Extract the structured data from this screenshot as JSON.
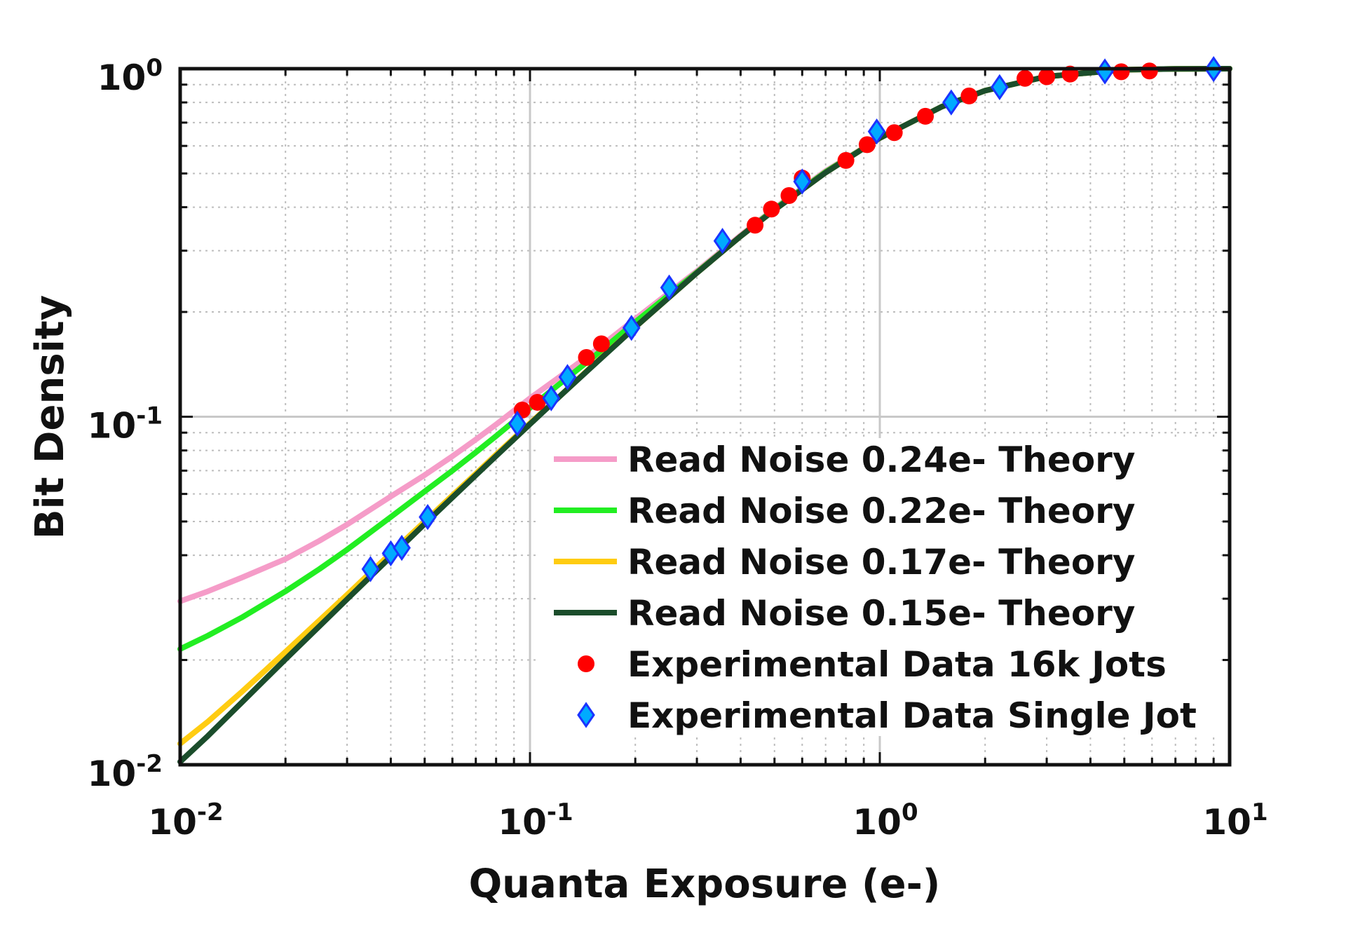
{
  "chart_data": {
    "type": "line",
    "xscale": "log",
    "yscale": "log",
    "xlim": [
      0.01,
      10
    ],
    "ylim": [
      0.01,
      1
    ],
    "xlabel": "Quanta Exposure (e-)",
    "ylabel": "Bit Density",
    "grid": true,
    "legend": "lower-right",
    "x_ticks": [
      {
        "base": "10",
        "exp": "-2",
        "value": 0.01
      },
      {
        "base": "10",
        "exp": "-1",
        "value": 0.1
      },
      {
        "base": "10",
        "exp": "0",
        "value": 1
      },
      {
        "base": "10",
        "exp": "1",
        "value": 10
      }
    ],
    "y_ticks": [
      {
        "base": "10",
        "exp": "-2",
        "value": 0.01
      },
      {
        "base": "10",
        "exp": "-1",
        "value": 0.1
      },
      {
        "base": "10",
        "exp": "0",
        "value": 1
      }
    ],
    "series": [
      {
        "name": "Read Noise 0.24e- Theory",
        "kind": "line",
        "color": "#f59cc8",
        "x": [
          0.01,
          0.012,
          0.015,
          0.02,
          0.025,
          0.03,
          0.04,
          0.05,
          0.06,
          0.07,
          0.08,
          0.1,
          0.12,
          0.15,
          0.2,
          0.3,
          0.4,
          0.5,
          0.7,
          1,
          1.5,
          2,
          3,
          5,
          7,
          10
        ],
        "y": [
          0.0295,
          0.0315,
          0.0345,
          0.039,
          0.044,
          0.049,
          0.059,
          0.068,
          0.077,
          0.086,
          0.095,
          0.113,
          0.129,
          0.152,
          0.191,
          0.262,
          0.332,
          0.397,
          0.508,
          0.632,
          0.777,
          0.865,
          0.95,
          0.993,
          0.999,
          1.0
        ]
      },
      {
        "name": "Read Noise 0.22e- Theory",
        "kind": "line",
        "color": "#22ee22",
        "x": [
          0.01,
          0.012,
          0.015,
          0.02,
          0.025,
          0.03,
          0.04,
          0.05,
          0.06,
          0.07,
          0.08,
          0.1,
          0.12,
          0.15,
          0.2,
          0.3,
          0.4,
          0.5,
          0.7,
          1,
          1.5,
          2,
          3,
          5,
          7,
          10
        ],
        "y": [
          0.0215,
          0.0235,
          0.0265,
          0.0315,
          0.0365,
          0.0415,
          0.0515,
          0.061,
          0.07,
          0.079,
          0.088,
          0.106,
          0.123,
          0.147,
          0.187,
          0.26,
          0.33,
          0.395,
          0.505,
          0.632,
          0.777,
          0.865,
          0.95,
          0.993,
          0.999,
          1.0
        ]
      },
      {
        "name": "Read Noise 0.17e- Theory",
        "kind": "line",
        "color": "#ffcc11",
        "x": [
          0.01,
          0.012,
          0.015,
          0.02,
          0.025,
          0.03,
          0.04,
          0.05,
          0.06,
          0.07,
          0.08,
          0.1,
          0.12,
          0.15,
          0.2,
          0.3,
          0.4,
          0.5,
          0.7,
          1,
          1.5,
          2,
          3,
          5,
          7,
          10
        ],
        "y": [
          0.0115,
          0.0133,
          0.0162,
          0.0211,
          0.026,
          0.0308,
          0.0405,
          0.05,
          0.0594,
          0.0686,
          0.0778,
          0.0958,
          0.113,
          0.1395,
          0.181,
          0.259,
          0.33,
          0.393,
          0.503,
          0.632,
          0.777,
          0.865,
          0.95,
          0.993,
          0.999,
          1.0
        ]
      },
      {
        "name": "Read Noise 0.15e- Theory",
        "kind": "line",
        "color": "#1b4d2b",
        "x": [
          0.01,
          0.012,
          0.015,
          0.02,
          0.025,
          0.03,
          0.04,
          0.05,
          0.06,
          0.07,
          0.08,
          0.1,
          0.12,
          0.15,
          0.2,
          0.3,
          0.4,
          0.5,
          0.7,
          1,
          1.5,
          2,
          3,
          5,
          7,
          10
        ],
        "y": [
          0.0102,
          0.0121,
          0.0151,
          0.0201,
          0.025,
          0.0299,
          0.0396,
          0.0492,
          0.0586,
          0.0679,
          0.0771,
          0.0952,
          0.113,
          0.139,
          0.181,
          0.259,
          0.33,
          0.393,
          0.503,
          0.632,
          0.777,
          0.865,
          0.95,
          0.993,
          0.999,
          1.0
        ]
      },
      {
        "name": "Experimental Data 16k Jots",
        "kind": "scatter",
        "marker": "circle",
        "color": "#ff0000",
        "x": [
          0.095,
          0.105,
          0.145,
          0.16,
          0.44,
          0.49,
          0.55,
          0.6,
          0.8,
          0.92,
          1.1,
          1.35,
          1.8,
          2.6,
          3.0,
          3.5,
          4.9,
          5.9
        ],
        "y": [
          0.1045,
          0.11,
          0.148,
          0.162,
          0.355,
          0.395,
          0.432,
          0.485,
          0.545,
          0.605,
          0.655,
          0.73,
          0.835,
          0.938,
          0.948,
          0.965,
          0.98,
          0.985
        ]
      },
      {
        "name": "Experimental Data Single Jot",
        "kind": "scatter",
        "marker": "diamond",
        "color": "#00aaff",
        "x": [
          0.035,
          0.04,
          0.043,
          0.051,
          0.092,
          0.115,
          0.128,
          0.195,
          0.25,
          0.355,
          0.6,
          0.98,
          1.6,
          2.2,
          4.4,
          9.0
        ],
        "y": [
          0.0365,
          0.0405,
          0.042,
          0.0515,
          0.0955,
          0.113,
          0.13,
          0.18,
          0.235,
          0.32,
          0.474,
          0.66,
          0.8,
          0.885,
          0.982,
          0.997
        ]
      }
    ]
  }
}
